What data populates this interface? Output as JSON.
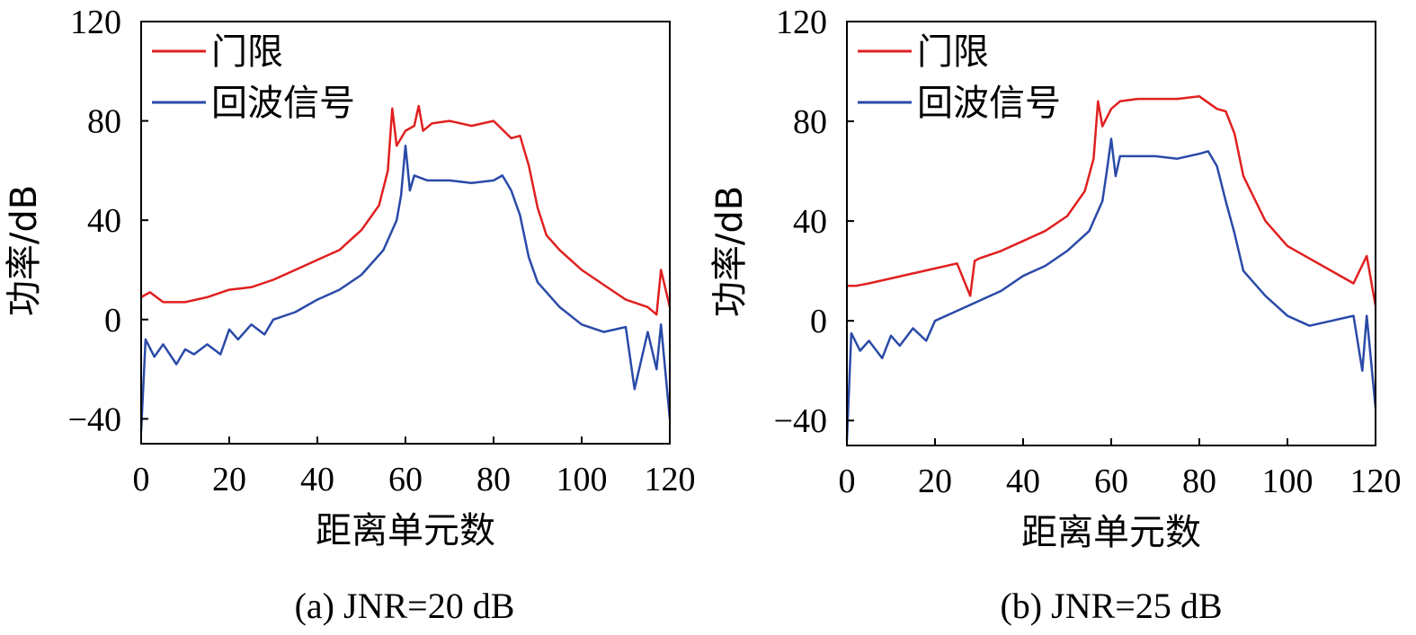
{
  "colors": {
    "threshold": "#e02020",
    "echo": "#2a4aa8",
    "axis": "#000000"
  },
  "chart_data": [
    {
      "type": "line",
      "caption": "(a) JNR=20 dB",
      "xlabel": "距离单元数",
      "ylabel": "功率/dB",
      "xlim": [
        0,
        120
      ],
      "ylim": [
        -50,
        120
      ],
      "xticks": [
        "0",
        "20",
        "40",
        "60",
        "80",
        "100",
        "120"
      ],
      "yticks": [
        "120",
        "80",
        "40",
        "0",
        "−40"
      ],
      "legend": {
        "position": "top-left"
      },
      "series": [
        {
          "name": "门限",
          "color": "#e02020",
          "x": [
            0,
            2,
            5,
            10,
            15,
            20,
            25,
            30,
            35,
            40,
            45,
            50,
            54,
            56,
            57,
            58,
            60,
            62,
            63,
            64,
            66,
            70,
            75,
            80,
            84,
            86,
            88,
            90,
            92,
            95,
            100,
            105,
            110,
            115,
            117,
            118,
            120
          ],
          "y": [
            9,
            11,
            7,
            7,
            9,
            12,
            13,
            16,
            20,
            24,
            28,
            36,
            46,
            60,
            85,
            70,
            76,
            78,
            86,
            76,
            79,
            80,
            78,
            80,
            73,
            74,
            62,
            45,
            34,
            28,
            20,
            14,
            8,
            5,
            2,
            20,
            5
          ]
        },
        {
          "name": "回波信号",
          "color": "#2a4aa8",
          "x": [
            0,
            1,
            3,
            5,
            8,
            10,
            12,
            15,
            18,
            20,
            22,
            25,
            28,
            30,
            35,
            40,
            45,
            50,
            55,
            58,
            59,
            60,
            61,
            62,
            65,
            70,
            75,
            80,
            82,
            84,
            86,
            88,
            90,
            95,
            100,
            105,
            110,
            112,
            115,
            117,
            118,
            120
          ],
          "y": [
            -45,
            -8,
            -15,
            -10,
            -18,
            -12,
            -14,
            -10,
            -14,
            -4,
            -8,
            -2,
            -6,
            0,
            3,
            8,
            12,
            18,
            28,
            40,
            50,
            70,
            52,
            58,
            56,
            56,
            55,
            56,
            58,
            52,
            42,
            25,
            15,
            5,
            -2,
            -5,
            -3,
            -28,
            -5,
            -20,
            -2,
            -40
          ]
        }
      ]
    },
    {
      "type": "line",
      "caption": "(b) JNR=25 dB",
      "xlabel": "距离单元数",
      "ylabel": "功率/dB",
      "xlim": [
        0,
        120
      ],
      "ylim": [
        -50,
        120
      ],
      "xticks": [
        "0",
        "20",
        "40",
        "60",
        "80",
        "100",
        "120"
      ],
      "yticks": [
        "120",
        "80",
        "40",
        "0",
        "−40"
      ],
      "legend": {
        "position": "top-left"
      },
      "series": [
        {
          "name": "门限",
          "color": "#e02020",
          "x": [
            0,
            2,
            5,
            10,
            15,
            20,
            25,
            28,
            29,
            30,
            35,
            40,
            45,
            50,
            54,
            56,
            57,
            58,
            60,
            62,
            66,
            70,
            75,
            80,
            84,
            86,
            88,
            90,
            95,
            100,
            105,
            110,
            115,
            118,
            120
          ],
          "y": [
            14,
            14,
            15,
            17,
            19,
            21,
            23,
            10,
            24,
            25,
            28,
            32,
            36,
            42,
            52,
            65,
            88,
            78,
            85,
            88,
            89,
            89,
            89,
            90,
            85,
            84,
            75,
            58,
            40,
            30,
            25,
            20,
            15,
            26,
            6
          ]
        },
        {
          "name": "回波信号",
          "color": "#2a4aa8",
          "x": [
            0,
            1,
            3,
            5,
            8,
            10,
            12,
            15,
            18,
            20,
            25,
            30,
            35,
            40,
            45,
            50,
            55,
            58,
            59,
            60,
            61,
            62,
            65,
            70,
            75,
            80,
            82,
            84,
            86,
            88,
            90,
            95,
            100,
            105,
            110,
            115,
            117,
            118,
            120
          ],
          "y": [
            -48,
            -5,
            -12,
            -8,
            -15,
            -6,
            -10,
            -3,
            -8,
            0,
            4,
            8,
            12,
            18,
            22,
            28,
            36,
            48,
            60,
            73,
            58,
            66,
            66,
            66,
            65,
            67,
            68,
            62,
            48,
            35,
            20,
            10,
            2,
            -2,
            0,
            2,
            -20,
            2,
            -35
          ]
        }
      ]
    }
  ]
}
